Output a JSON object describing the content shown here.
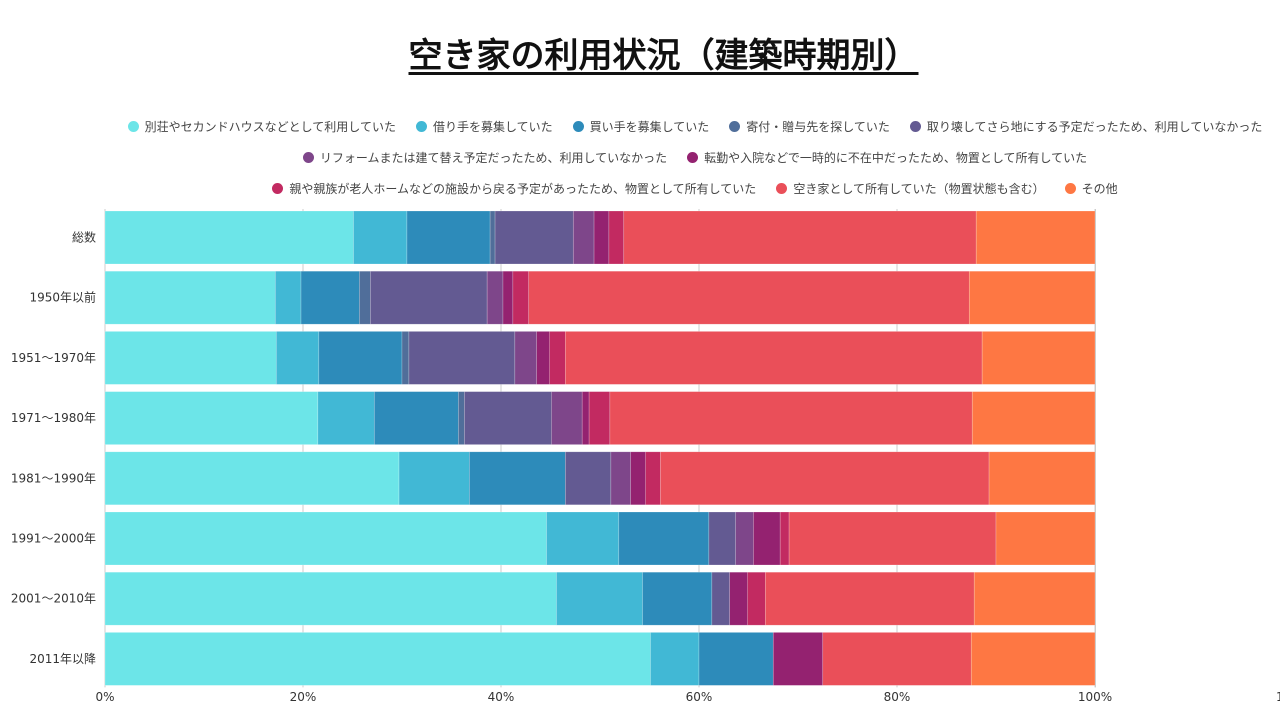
{
  "chart_data": {
    "type": "bar",
    "orientation": "horizontal",
    "stacked": "percent",
    "title": "空き家の利用状況（建築時期別）",
    "xlabel": "",
    "ylabel": "",
    "xlim": [
      0,
      100
    ],
    "x_ticks": [
      "0%",
      "20%",
      "40%",
      "60%",
      "80%",
      "100%",
      "1"
    ],
    "x_tick_values": [
      0,
      20,
      40,
      60,
      80,
      100,
      120
    ],
    "grid": true,
    "legend_position": "top",
    "categories": [
      "総数",
      "1950年以前",
      "1951～1970年",
      "1971～1980年",
      "1981～1990年",
      "1991～2000年",
      "2001～2010年",
      "2011年以降"
    ],
    "series": [
      {
        "name": "別荘やセカンドハウスなどとして利用していた",
        "color": "#6ce5e8",
        "values": [
          25.1,
          17.2,
          17.3,
          21.5,
          29.7,
          44.6,
          45.6,
          55.1
        ]
      },
      {
        "name": "借り手を募集していた",
        "color": "#41b8d5",
        "values": [
          5.4,
          2.6,
          4.3,
          5.7,
          7.1,
          7.3,
          8.7,
          4.9
        ]
      },
      {
        "name": "買い手を募集していた",
        "color": "#2d8bba",
        "values": [
          8.4,
          5.9,
          8.4,
          8.5,
          9.7,
          9.1,
          7.0,
          7.5
        ]
      },
      {
        "name": "寄付・贈与先を探していた",
        "color": "#506e9a",
        "values": [
          0.5,
          1.1,
          0.7,
          0.6,
          0.0,
          0.0,
          0.0,
          0.0
        ]
      },
      {
        "name": "取り壊してさら地にする予定だったため、利用していなかった",
        "color": "#635a92",
        "values": [
          7.9,
          11.8,
          10.7,
          8.8,
          4.6,
          2.7,
          1.8,
          0.0
        ]
      },
      {
        "name": "リフォームまたは建て替え予定だったため、利用していなかった",
        "color": "#7e468a",
        "values": [
          2.1,
          1.6,
          2.2,
          3.1,
          2.0,
          1.8,
          0.0,
          0.0
        ]
      },
      {
        "name": "転勤や入院などで一時的に不在中だったため、物置として所有していた",
        "color": "#942270",
        "values": [
          1.5,
          1.0,
          1.3,
          0.7,
          1.5,
          2.7,
          1.8,
          5.0
        ]
      },
      {
        "name": "親や親族が老人ホームなどの施設から戻る予定があったため、物置として所有していた",
        "color": "#c22a61",
        "values": [
          1.5,
          1.6,
          1.6,
          2.1,
          1.5,
          0.9,
          1.8,
          0.0
        ]
      },
      {
        "name": "空き家として所有していた（物置状態も含む）",
        "color": "#ea4f59",
        "values": [
          35.6,
          44.5,
          42.1,
          36.6,
          33.2,
          20.9,
          21.1,
          15.0
        ]
      },
      {
        "name": "その他",
        "color": "#fe7743",
        "values": [
          12.0,
          12.7,
          11.4,
          12.4,
          10.7,
          10.0,
          12.2,
          12.5
        ]
      }
    ]
  },
  "legend_rows": [
    [
      0,
      1,
      2,
      3,
      4
    ],
    [
      5,
      6
    ],
    [
      7,
      8,
      9
    ]
  ]
}
